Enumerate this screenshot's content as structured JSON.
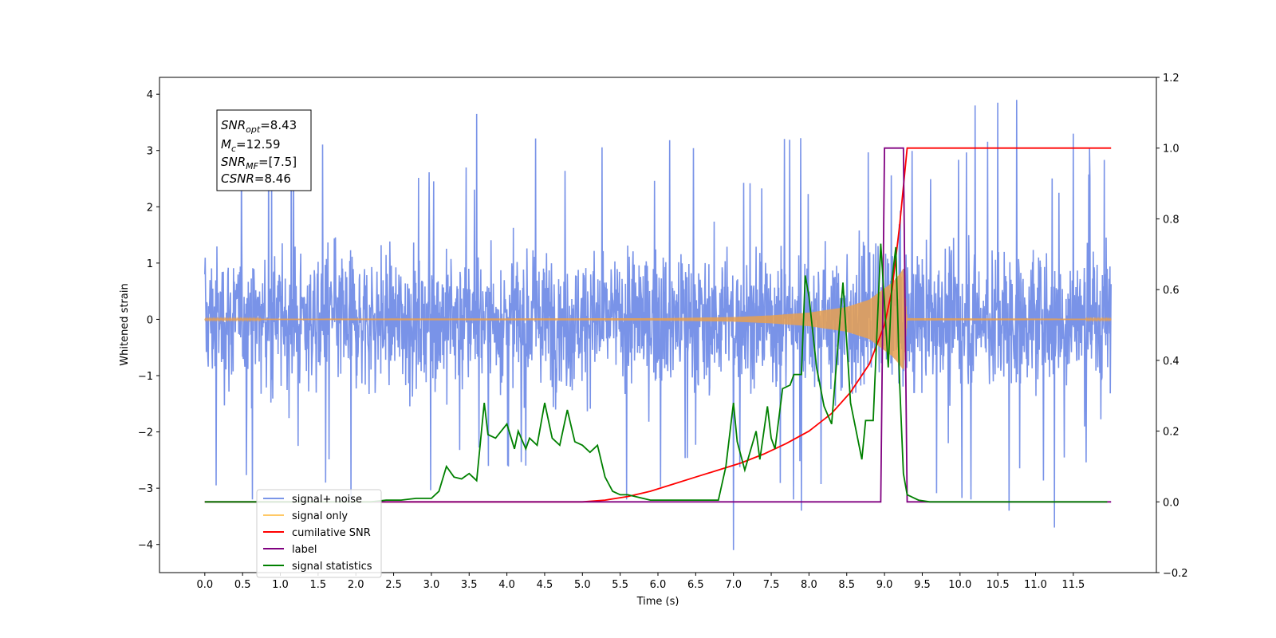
{
  "chart_data": {
    "type": "line",
    "xlabel": "Time (s)",
    "ylabel": "Whitened strain",
    "xlim": [
      -0.6,
      12.6
    ],
    "ylim_left": [
      -4.5,
      4.3
    ],
    "ylim_right": [
      -0.2,
      1.2
    ],
    "x_ticks": [
      "0.0",
      "0.5",
      "1.0",
      "1.5",
      "2.0",
      "2.5",
      "3.0",
      "3.5",
      "4.0",
      "4.5",
      "5.0",
      "5.5",
      "6.0",
      "6.5",
      "7.0",
      "7.5",
      "8.0",
      "8.5",
      "9.0",
      "9.5",
      "10.0",
      "10.5",
      "11.0",
      "11.5"
    ],
    "y_ticks_left": [
      "4",
      "3",
      "2",
      "1",
      "0",
      "−1",
      "−2",
      "−3",
      "−4"
    ],
    "y_ticks_right": [
      "1.2",
      "1.0",
      "0.8",
      "0.6",
      "0.4",
      "0.2",
      "0.0",
      "−0.2"
    ],
    "annotation": {
      "line1": {
        "sym": "SNR",
        "sub": "opt",
        "val": "=8.43"
      },
      "line2": {
        "sym": "M",
        "sub": "c",
        "val": "=12.59"
      },
      "line3": {
        "sym": "SNR",
        "sub": "MF",
        "val": "=[7.5]"
      },
      "line4": {
        "sym": "CSNR",
        "sub": "",
        "val": "=8.46"
      }
    },
    "legend": {
      "placement": "lower-left",
      "entries": [
        {
          "label": "signal+ noise",
          "color": "#7b96e8"
        },
        {
          "label": "signal only",
          "color": "#ffc966"
        },
        {
          "label": "cumilative SNR",
          "color": "#ff0000"
        },
        {
          "label": "label",
          "color": "#800080"
        },
        {
          "label": "signal statistics",
          "color": "#008000"
        }
      ]
    },
    "series": [
      {
        "name": "signal+ noise",
        "axis": "left",
        "color": "#6a87e6",
        "x_range": [
          0,
          12.0
        ],
        "band_min": -2.2,
        "band_max": 2.3,
        "spikes": [
          [
            3.6,
            3.65
          ],
          [
            4.25,
            -2.6
          ],
          [
            7.0,
            -4.1
          ],
          [
            10.5,
            3.85
          ],
          [
            10.75,
            3.9
          ],
          [
            10.65,
            -3.4
          ],
          [
            11.25,
            -3.7
          ],
          [
            11.5,
            3.3
          ],
          [
            10.2,
            3.8
          ],
          [
            1.6,
            -2.9
          ],
          [
            0.15,
            -2.95
          ],
          [
            7.9,
            -3.4
          ]
        ]
      },
      {
        "name": "signal only",
        "axis": "left",
        "color": "#e8a050",
        "x": [
          0,
          6.0,
          7.0,
          7.5,
          8.0,
          8.5,
          8.8,
          9.0,
          9.1,
          9.2,
          9.25,
          9.3,
          12.0
        ],
        "envelope": [
          0.01,
          0.02,
          0.04,
          0.07,
          0.12,
          0.22,
          0.35,
          0.55,
          0.65,
          0.8,
          0.9,
          0.02,
          0.01
        ]
      },
      {
        "name": "cumilative SNR",
        "axis": "right",
        "color": "#ff0000",
        "x": [
          0,
          5.0,
          5.3,
          5.6,
          5.9,
          6.2,
          6.5,
          6.8,
          7.1,
          7.4,
          7.7,
          8.0,
          8.3,
          8.55,
          8.8,
          9.0,
          9.1,
          9.2,
          9.3,
          12.0
        ],
        "values": [
          0.0,
          0.0,
          0.005,
          0.015,
          0.03,
          0.05,
          0.07,
          0.09,
          0.11,
          0.135,
          0.165,
          0.2,
          0.25,
          0.31,
          0.39,
          0.5,
          0.6,
          0.78,
          1.0,
          1.0
        ]
      },
      {
        "name": "label",
        "axis": "right",
        "color": "#800080",
        "x": [
          0,
          8.95,
          9.0,
          9.25,
          9.3,
          12.0
        ],
        "values": [
          0,
          0,
          1,
          1,
          0,
          0
        ]
      },
      {
        "name": "signal statistics",
        "axis": "right",
        "color": "#008000",
        "x": [
          0,
          2.2,
          2.4,
          2.6,
          2.8,
          3.0,
          3.1,
          3.2,
          3.3,
          3.4,
          3.5,
          3.6,
          3.7,
          3.75,
          3.85,
          4.0,
          4.1,
          4.15,
          4.25,
          4.3,
          4.4,
          4.5,
          4.6,
          4.7,
          4.8,
          4.9,
          5.0,
          5.1,
          5.2,
          5.3,
          5.4,
          5.5,
          5.6,
          5.7,
          5.8,
          5.9,
          6.0,
          6.2,
          6.4,
          6.6,
          6.8,
          6.9,
          7.0,
          7.05,
          7.15,
          7.3,
          7.35,
          7.45,
          7.5,
          7.55,
          7.65,
          7.75,
          7.8,
          7.9,
          7.95,
          8.0,
          8.1,
          8.2,
          8.3,
          8.45,
          8.55,
          8.7,
          8.75,
          8.85,
          8.95,
          9.0,
          9.05,
          9.1,
          9.15,
          9.2,
          9.25,
          9.3,
          9.35,
          9.45,
          9.6,
          10.0,
          11.0,
          11.95
        ],
        "values": [
          0.0,
          0.0,
          0.005,
          0.005,
          0.01,
          0.01,
          0.03,
          0.1,
          0.07,
          0.065,
          0.08,
          0.06,
          0.28,
          0.19,
          0.18,
          0.22,
          0.15,
          0.2,
          0.15,
          0.18,
          0.16,
          0.28,
          0.18,
          0.16,
          0.26,
          0.17,
          0.16,
          0.14,
          0.16,
          0.07,
          0.03,
          0.02,
          0.02,
          0.015,
          0.01,
          0.005,
          0.005,
          0.005,
          0.005,
          0.005,
          0.005,
          0.1,
          0.28,
          0.17,
          0.09,
          0.2,
          0.12,
          0.27,
          0.18,
          0.15,
          0.32,
          0.33,
          0.36,
          0.36,
          0.64,
          0.58,
          0.38,
          0.27,
          0.22,
          0.62,
          0.28,
          0.12,
          0.23,
          0.23,
          0.73,
          0.56,
          0.38,
          0.63,
          0.72,
          0.34,
          0.08,
          0.02,
          0.015,
          0.005,
          0.0,
          0.0,
          0.0,
          0.0
        ]
      }
    ]
  }
}
